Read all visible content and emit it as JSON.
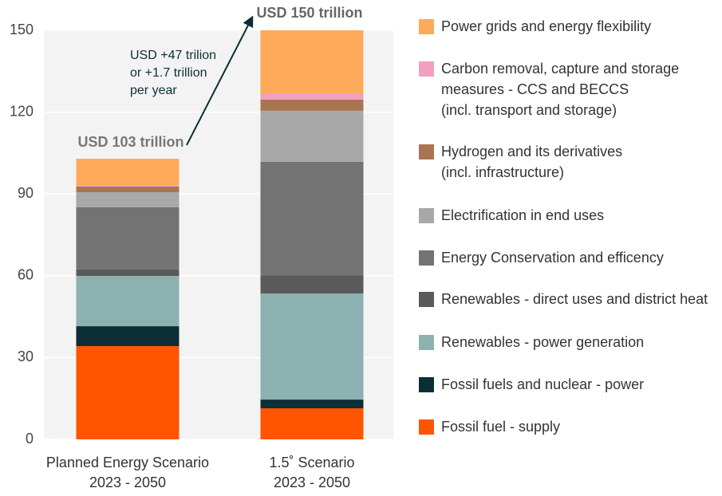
{
  "chart_data": {
    "type": "stacked_bar",
    "categories": [
      [
        "Planned Energy Scenario",
        "2023 - 2050"
      ],
      [
        "1.5˚ Scenario",
        "2023 - 2050"
      ]
    ],
    "series": [
      {
        "name": "Fossil fuel - supply",
        "color": "#ff5500",
        "values": [
          34.2,
          11.4
        ]
      },
      {
        "name": "Fossil fuels and nuclear - power",
        "color": "#0c2f36",
        "values": [
          7.3,
          3.2
        ]
      },
      {
        "name": "Renewables - power generation",
        "color": "#8db1b0",
        "values": [
          18.4,
          38.9
        ]
      },
      {
        "name": "Renewables - direct uses and district heat",
        "color": "#5a5a5a",
        "values": [
          2.4,
          6.7
        ]
      },
      {
        "name": "Energy Conservation and efficency",
        "color": "#737373",
        "values": [
          22.8,
          41.6
        ]
      },
      {
        "name": "Electrification in end uses",
        "color": "#a8a8a8",
        "values": [
          5.5,
          18.7
        ]
      },
      {
        "name": "Hydrogen and its derivatives\n(incl. infrastructure)",
        "color": "#a87552",
        "values": [
          2.1,
          4.1
        ]
      },
      {
        "name": "Carbon removal, capture and storage\nmeasures - CCS and BECCS\n(incl. transport and storage)",
        "color": "#f1a0be",
        "values": [
          0.3,
          2.3
        ]
      },
      {
        "name": "Power grids and energy flexibility",
        "color": "#fdaa5a",
        "values": [
          9.9,
          23.1
        ]
      }
    ],
    "ylim": [
      0,
      150
    ],
    "yticks": [
      0,
      30,
      60,
      90,
      120,
      150
    ],
    "grid": true,
    "annotations": {
      "planned_total": "USD 103 trillion",
      "scenario_total": "USD 150 trillion",
      "difference": [
        "USD +47 trilion",
        "or +1.7 trillion",
        "per year"
      ]
    }
  }
}
